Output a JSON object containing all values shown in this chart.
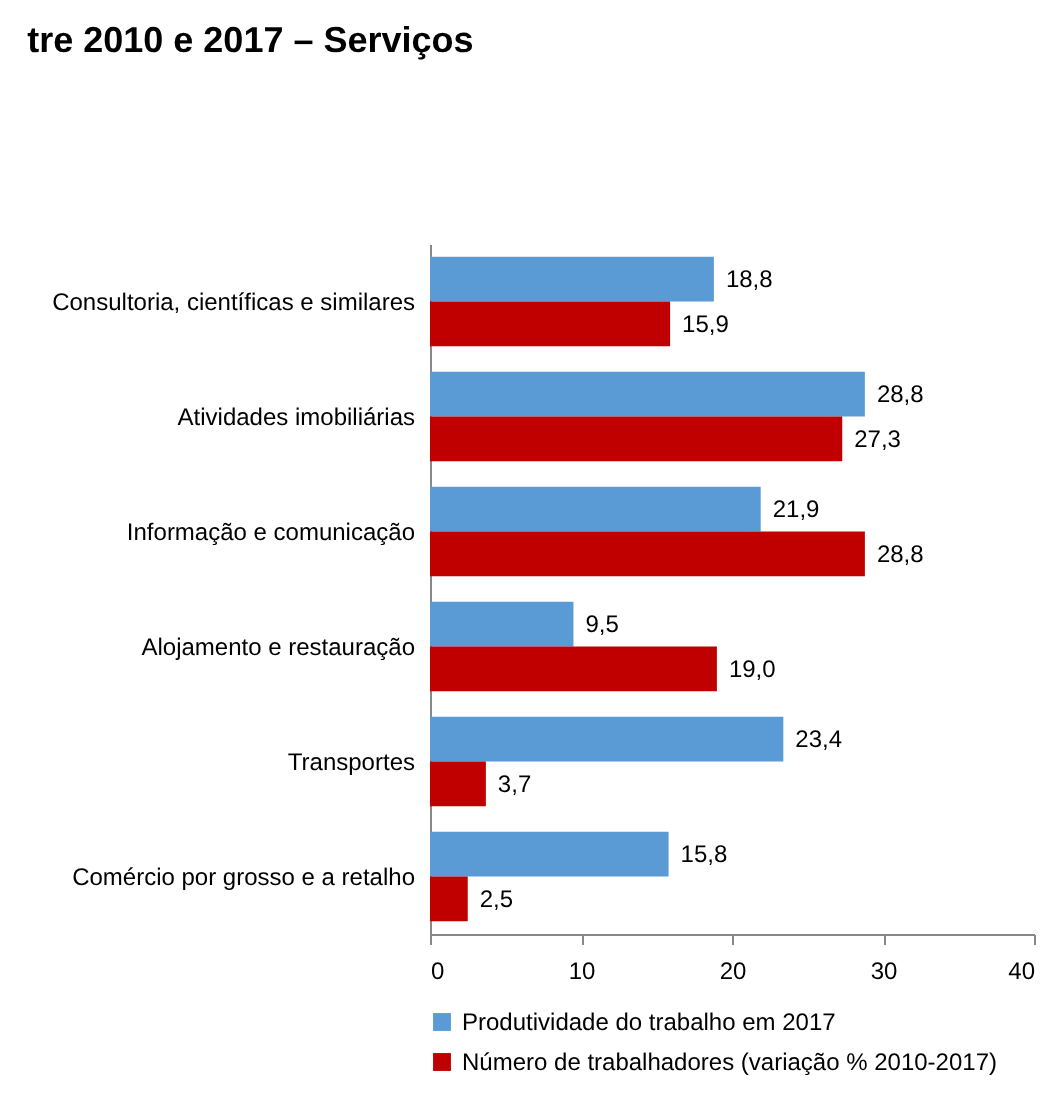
{
  "chart_data": {
    "type": "bar",
    "orientation": "horizontal",
    "title": "tre 2010 e 2017 – Serviços",
    "categories": [
      "Consultoria, científicas e similares",
      "Atividades imobiliárias",
      "Informação e comunicação",
      "Alojamento e restauração",
      "Transportes",
      "Comércio por grosso e a retalho"
    ],
    "series": [
      {
        "name": "Produtividade do trabalho em 2017",
        "color": "#5b9bd5",
        "values": [
          18.8,
          28.8,
          21.9,
          9.5,
          23.4,
          15.8
        ],
        "value_labels": [
          "18,8",
          "28,8",
          "21,9",
          "9,5",
          "23,4",
          "15,8"
        ]
      },
      {
        "name": "Número de trabalhadores (variação % 2010-2017)",
        "color": "#c00000",
        "values": [
          15.9,
          27.3,
          28.8,
          19.0,
          3.7,
          2.5
        ],
        "value_labels": [
          "15,9",
          "27,3",
          "28,8",
          "19,0",
          "3,7",
          "2,5"
        ]
      }
    ],
    "xlim": [
      0,
      40
    ],
    "xticks": [
      0,
      10,
      20,
      30,
      40
    ],
    "legend": "bottom",
    "grid": false
  }
}
